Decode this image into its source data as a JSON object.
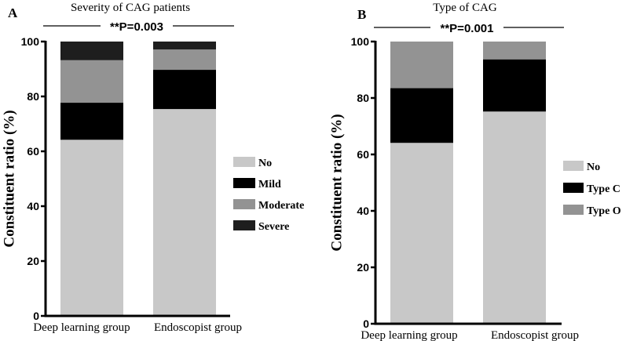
{
  "chart_data": [
    {
      "type": "bar",
      "stacked": true,
      "panel_label": "A",
      "title": "Severity of CAG patients",
      "annotation": "**P=0.003",
      "xlabel": "",
      "ylabel": "Constituent ratio (%)",
      "ylim": [
        0,
        100
      ],
      "yticks": [
        0,
        20,
        40,
        60,
        80,
        100
      ],
      "grid": false,
      "legend_position": "right",
      "categories": [
        "Deep learning group",
        "Endoscopist group"
      ],
      "series": [
        {
          "name": "No",
          "color": "#c8c8c8",
          "values": [
            64.2,
            75.4
          ]
        },
        {
          "name": "Mild",
          "color": "#000000",
          "values": [
            13.5,
            14.3
          ]
        },
        {
          "name": "Moderate",
          "color": "#939393",
          "values": [
            15.5,
            7.4
          ]
        },
        {
          "name": "Severe",
          "color": "#1e1e1e",
          "values": [
            6.8,
            2.9
          ]
        }
      ]
    },
    {
      "type": "bar",
      "stacked": true,
      "panel_label": "B",
      "title": "Type of CAG",
      "annotation": "**P=0.001",
      "xlabel": "",
      "ylabel": "Constituent ratio (%)",
      "ylim": [
        0,
        100
      ],
      "yticks": [
        0,
        20,
        40,
        60,
        80,
        100
      ],
      "grid": false,
      "legend_position": "right",
      "categories": [
        "Deep learning group",
        "Endoscopist group"
      ],
      "series": [
        {
          "name": "No",
          "color": "#c8c8c8",
          "values": [
            64.1,
            75.2
          ]
        },
        {
          "name": "Type C",
          "color": "#000000",
          "values": [
            19.4,
            18.5
          ]
        },
        {
          "name": "Type O",
          "color": "#939393",
          "values": [
            16.5,
            6.3
          ]
        }
      ]
    }
  ]
}
